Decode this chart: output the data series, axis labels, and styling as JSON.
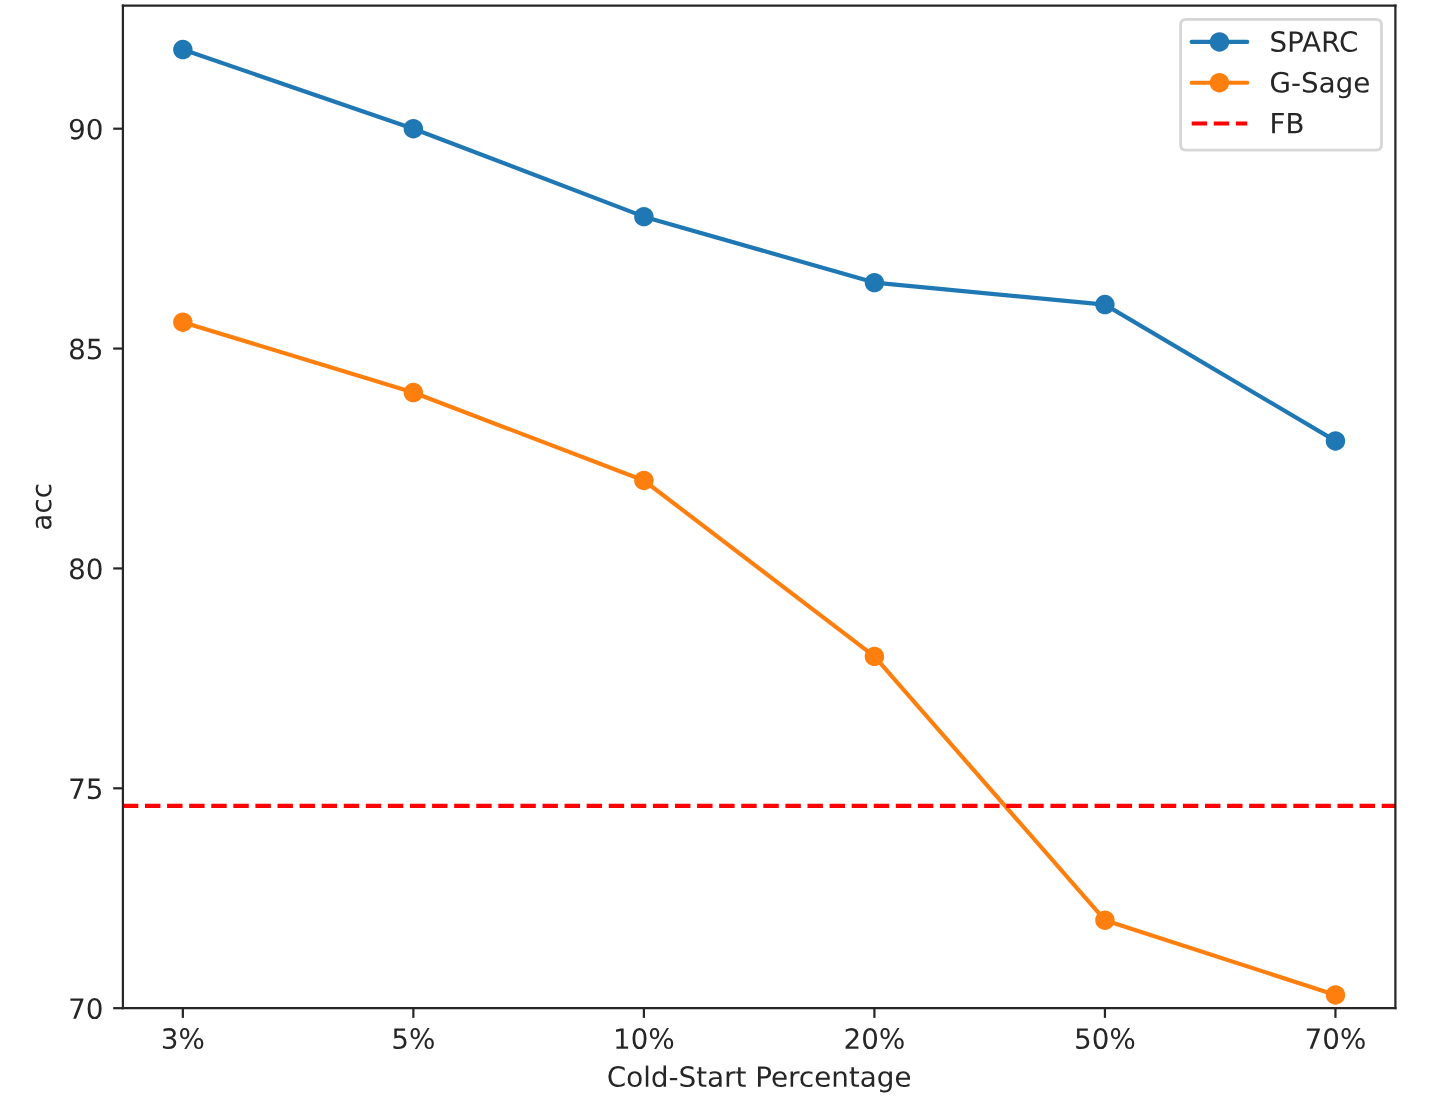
{
  "chart_data": {
    "type": "line",
    "xlabel": "Cold-Start Percentage",
    "ylabel": "acc",
    "categories": [
      "3%",
      "5%",
      "10%",
      "20%",
      "50%",
      "70%"
    ],
    "series": [
      {
        "name": "SPARC",
        "color": "#1f77b4",
        "values": [
          91.8,
          90.0,
          88.0,
          86.5,
          86.0,
          82.9
        ]
      },
      {
        "name": "G-Sage",
        "color": "#ff7f0e",
        "values": [
          85.6,
          84.0,
          82.0,
          78.0,
          72.0,
          70.3
        ]
      }
    ],
    "ref_lines": [
      {
        "axis": "y",
        "value": 74.6,
        "label": "FB",
        "color": "#ff0000",
        "line_style": "dashed"
      }
    ],
    "ylim": [
      70,
      92.8
    ],
    "yticks": [
      70,
      75,
      80,
      85,
      90
    ],
    "marker": "circle",
    "line_style": "solid",
    "legend": "top right",
    "grid": false
  }
}
